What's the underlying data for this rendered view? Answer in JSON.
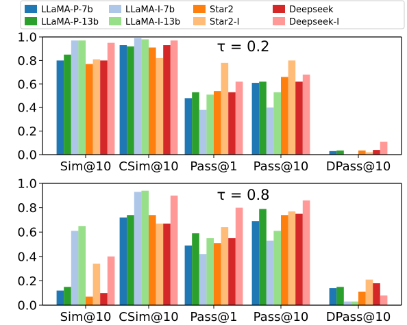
{
  "colors": {
    "LLaMA-P-7b": "#1f77b4",
    "LLaMA-P-13b": "#2ca02c",
    "LLaMA-I-7b": "#aec7e8",
    "LLaMA-I-13b": "#98df8a",
    "Star2": "#ff7f0e",
    "Star2-I": "#ffbb78",
    "Deepseek": "#d62728",
    "Deepseek-I": "#ff9896"
  },
  "legend": {
    "placement": "top",
    "entries": [
      "LLaMA-P-7b",
      "LLaMA-P-13b",
      "LLaMA-I-7b",
      "LLaMA-I-13b",
      "Star2",
      "Star2-I",
      "Deepseek",
      "Deepseek-I"
    ]
  },
  "chart_data": [
    {
      "type": "bar",
      "annotation": "τ = 0.2",
      "categories": [
        "Sim@10",
        "CSim@10",
        "Pass@1",
        "Pass@10",
        "DPass@10"
      ],
      "ylim": [
        0,
        1.0
      ],
      "yticks": [
        "0.0",
        "0.2",
        "0.4",
        "0.6",
        "0.8",
        "1.0"
      ],
      "grid": false,
      "series": [
        {
          "name": "LLaMA-P-7b",
          "values": [
            0.8,
            0.93,
            0.48,
            0.61,
            0.03
          ]
        },
        {
          "name": "LLaMA-P-13b",
          "values": [
            0.85,
            0.92,
            0.53,
            0.62,
            0.035
          ]
        },
        {
          "name": "LLaMA-I-7b",
          "values": [
            0.97,
            0.99,
            0.38,
            0.4,
            0.0
          ]
        },
        {
          "name": "LLaMA-I-13b",
          "values": [
            0.97,
            0.98,
            0.51,
            0.53,
            0.0
          ]
        },
        {
          "name": "Star2",
          "values": [
            0.77,
            0.91,
            0.54,
            0.66,
            0.035
          ]
        },
        {
          "name": "Star2-I",
          "values": [
            0.81,
            0.82,
            0.78,
            0.8,
            0.02
          ]
        },
        {
          "name": "Deepseek",
          "values": [
            0.8,
            0.93,
            0.53,
            0.62,
            0.04
          ]
        },
        {
          "name": "Deepseek-I",
          "values": [
            0.95,
            0.97,
            0.62,
            0.68,
            0.11
          ]
        }
      ]
    },
    {
      "type": "bar",
      "annotation": "τ = 0.8",
      "categories": [
        "Sim@10",
        "CSim@10",
        "Pass@1",
        "Pass@10",
        "DPass@10"
      ],
      "ylim": [
        0,
        1.0
      ],
      "yticks": [
        "0.0",
        "0.2",
        "0.4",
        "0.6",
        "0.8",
        "1.0"
      ],
      "grid": false,
      "series": [
        {
          "name": "LLaMA-P-7b",
          "values": [
            0.12,
            0.72,
            0.49,
            0.69,
            0.14
          ]
        },
        {
          "name": "LLaMA-P-13b",
          "values": [
            0.15,
            0.74,
            0.59,
            0.79,
            0.15
          ]
        },
        {
          "name": "LLaMA-I-7b",
          "values": [
            0.61,
            0.93,
            0.42,
            0.53,
            0.03
          ]
        },
        {
          "name": "LLaMA-I-13b",
          "values": [
            0.65,
            0.94,
            0.55,
            0.61,
            0.03
          ]
        },
        {
          "name": "Star2",
          "values": [
            0.07,
            0.74,
            0.51,
            0.74,
            0.11
          ]
        },
        {
          "name": "Star2-I",
          "values": [
            0.34,
            0.67,
            0.64,
            0.77,
            0.21
          ]
        },
        {
          "name": "Deepseek",
          "values": [
            0.1,
            0.67,
            0.55,
            0.75,
            0.18
          ]
        },
        {
          "name": "Deepseek-I",
          "values": [
            0.4,
            0.9,
            0.8,
            0.86,
            0.08
          ]
        }
      ]
    }
  ]
}
